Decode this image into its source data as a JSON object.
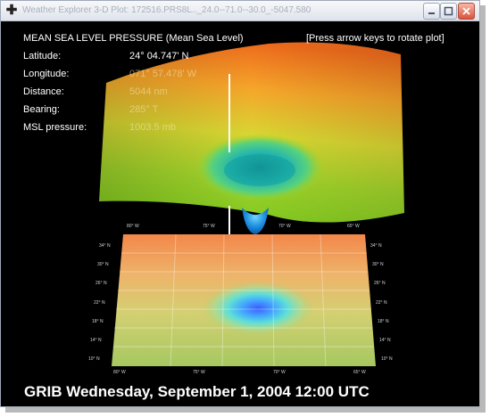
{
  "window": {
    "title": "Weather Explorer 3-D Plot: 172516.PRS8L.._24.0--71.0--30.0_-5047.580"
  },
  "plot": {
    "heading": "MEAN SEA LEVEL PRESSURE (Mean Sea Level)",
    "hint": "[Press arrow keys to rotate plot]"
  },
  "info": {
    "latitude_label": "Latitude:",
    "latitude_value": "24° 04.747' N",
    "longitude_label": "Longitude:",
    "longitude_value": "071° 57.478' W",
    "distance_label": "Distance:",
    "distance_value": "5044 nm",
    "bearing_label": "Bearing:",
    "bearing_value": "285° T",
    "pressure_label": "MSL pressure:",
    "pressure_value": "1003.5 mb"
  },
  "map_ticks": {
    "top": [
      "80° W",
      "75° W",
      "70° W",
      "65° W"
    ],
    "bottom": [
      "80° W",
      "75° W",
      "70° W",
      "65° W"
    ],
    "left": [
      "34° N",
      "30° N",
      "26° N",
      "22° N",
      "18° N",
      "14° N",
      "10° N"
    ],
    "right": [
      "34° N",
      "30° N",
      "26° N",
      "22° N",
      "18° N",
      "14° N",
      "10° N"
    ]
  },
  "footer": {
    "text": "GRIB Wednesday, September 1, 2004 12:00 UTC"
  },
  "colors": {
    "background": "#000000",
    "high_pressure": "#f07a1f",
    "mid_pressure": "#c8dc28",
    "low_pressure": "#1e8fe0"
  }
}
